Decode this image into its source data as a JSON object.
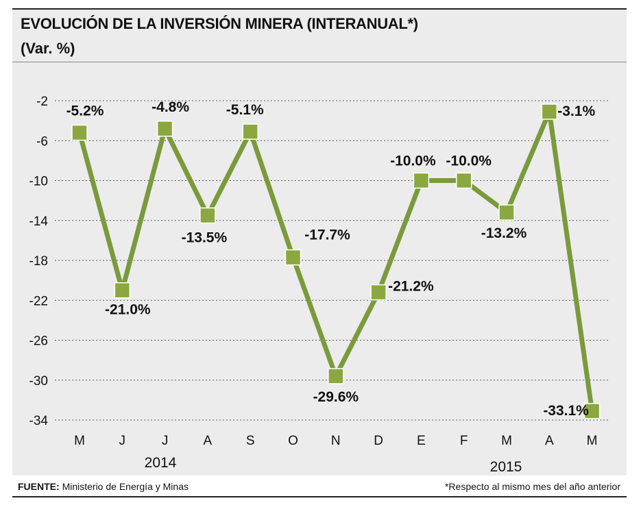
{
  "header": {
    "title": "EVOLUCIÓN DE  LA INVERSIÓN MINERA (INTERANUAL*)",
    "subtitle": "(Var. %)"
  },
  "footer": {
    "source_label": "FUENTE:",
    "source_text": "Ministerio de Energía y Minas",
    "note": "*Respecto al mismo mes del año anterior"
  },
  "colors": {
    "line": "#7a9a3c",
    "marker": "#8aa83f",
    "marker_border": "#ffffff",
    "background": "#ececec",
    "grid": "#555555"
  },
  "chart_data": {
    "type": "line",
    "title": "EVOLUCIÓN DE  LA INVERSIÓN MINERA (INTERANUAL*)",
    "subtitle": "(Var. %)",
    "categories": [
      "M",
      "J",
      "J",
      "A",
      "S",
      "O",
      "N",
      "D",
      "E",
      "F",
      "M",
      "A",
      "M"
    ],
    "year_labels": [
      {
        "label": "2014",
        "start_index": 0,
        "end_index": 7
      },
      {
        "label": "2015",
        "start_index": 8,
        "end_index": 12
      }
    ],
    "series": [
      {
        "values": [
          -5.2,
          -21.0,
          -4.8,
          -13.5,
          -5.1,
          -17.7,
          -29.6,
          -21.2,
          -10.0,
          -10.0,
          -13.2,
          -3.1,
          -33.1
        ],
        "data_labels": [
          "-5.2%",
          "-21.0%",
          "-4.8%",
          "-13.5%",
          "-5.1%",
          "-17.7%",
          "-29.6%",
          "-21.2%",
          "-10.0%",
          "-10.0%",
          "-13.2%",
          "-3.1%",
          "-33.1%"
        ]
      }
    ],
    "ylim": [
      -34,
      -2
    ],
    "yticks": [
      "-2",
      "-6",
      "-10",
      "-14",
      "-18",
      "-22",
      "-26",
      "-30",
      "-34"
    ],
    "ytick_values": [
      -2,
      -6,
      -10,
      -14,
      -18,
      -22,
      -26,
      -30,
      -34
    ],
    "grid": true,
    "grid_style": "dashed",
    "xlabel": "",
    "ylabel": ""
  }
}
